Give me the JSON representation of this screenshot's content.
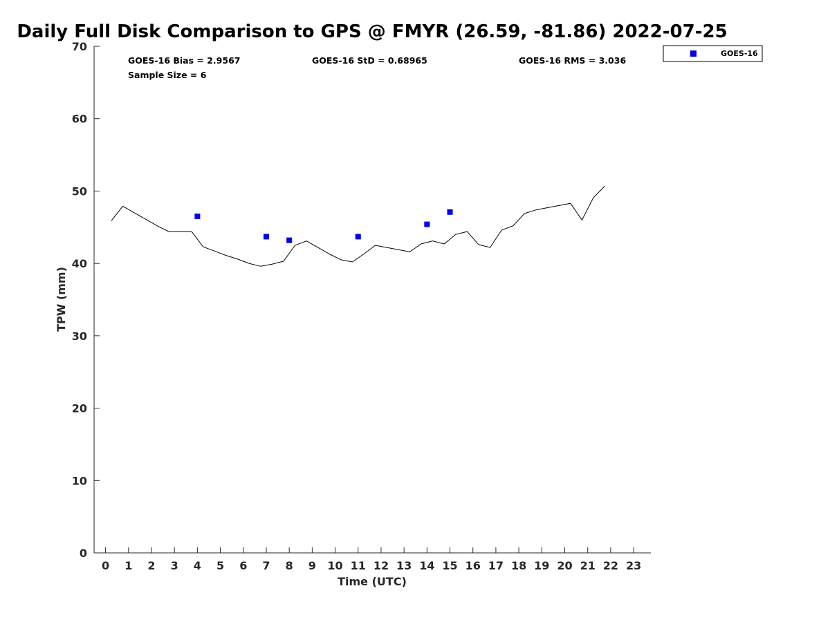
{
  "chart_data": {
    "type": "scatter",
    "title": "Daily Full Disk Comparison to GPS @ FMYR (26.59, -81.86) 2022-07-25",
    "xlabel": "Time (UTC)",
    "ylabel": "TPW (mm)",
    "xlim": [
      -0.5,
      23.75
    ],
    "ylim": [
      0,
      70
    ],
    "xticks": [
      0,
      1,
      2,
      3,
      4,
      5,
      6,
      7,
      8,
      9,
      10,
      11,
      12,
      13,
      14,
      15,
      16,
      17,
      18,
      19,
      20,
      21,
      22,
      23
    ],
    "yticks": [
      0,
      10,
      20,
      30,
      40,
      50,
      60,
      70
    ],
    "grid": false,
    "legend_position": "top-right",
    "stats": {
      "bias": "GOES-16 Bias = 2.9567",
      "std": "GOES-16 StD = 0.68965",
      "rms": "GOES-16 RMS = 3.036",
      "sample_size": "Sample Size = 6"
    },
    "gps_line": {
      "color": "#000000",
      "x": [
        0.25,
        0.75,
        1.25,
        1.75,
        2.25,
        2.75,
        3.25,
        3.75,
        4.25,
        4.75,
        5.25,
        5.75,
        6.25,
        6.75,
        7.25,
        7.75,
        8.25,
        8.75,
        9.25,
        9.75,
        10.25,
        10.75,
        11.25,
        11.75,
        12.25,
        12.75,
        13.25,
        13.75,
        14.25,
        14.75,
        15.25,
        15.75,
        16.25,
        16.75,
        17.25,
        17.75,
        18.25,
        18.75,
        19.25,
        19.75,
        20.25,
        20.75,
        21.25,
        21.75
      ],
      "y": [
        45.9,
        47.9,
        47.0,
        46.1,
        45.2,
        44.4,
        44.4,
        44.4,
        42.3,
        41.7,
        41.1,
        40.6,
        40.0,
        39.6,
        39.9,
        40.3,
        42.5,
        43.1,
        42.2,
        41.3,
        40.5,
        40.2,
        41.3,
        42.5,
        42.2,
        41.9,
        41.6,
        42.7,
        43.1,
        42.7,
        44.0,
        44.4,
        42.6,
        42.2,
        44.6,
        45.2,
        46.9,
        47.4,
        47.7,
        48.0,
        48.3,
        46.0,
        49.1,
        50.7
      ]
    },
    "series": [
      {
        "name": "GOES-16",
        "color": "#0000ee",
        "marker": "square",
        "x": [
          4,
          7,
          8,
          11,
          14,
          15
        ],
        "y": [
          46.5,
          43.7,
          43.2,
          43.7,
          45.4,
          47.1
        ]
      }
    ]
  }
}
